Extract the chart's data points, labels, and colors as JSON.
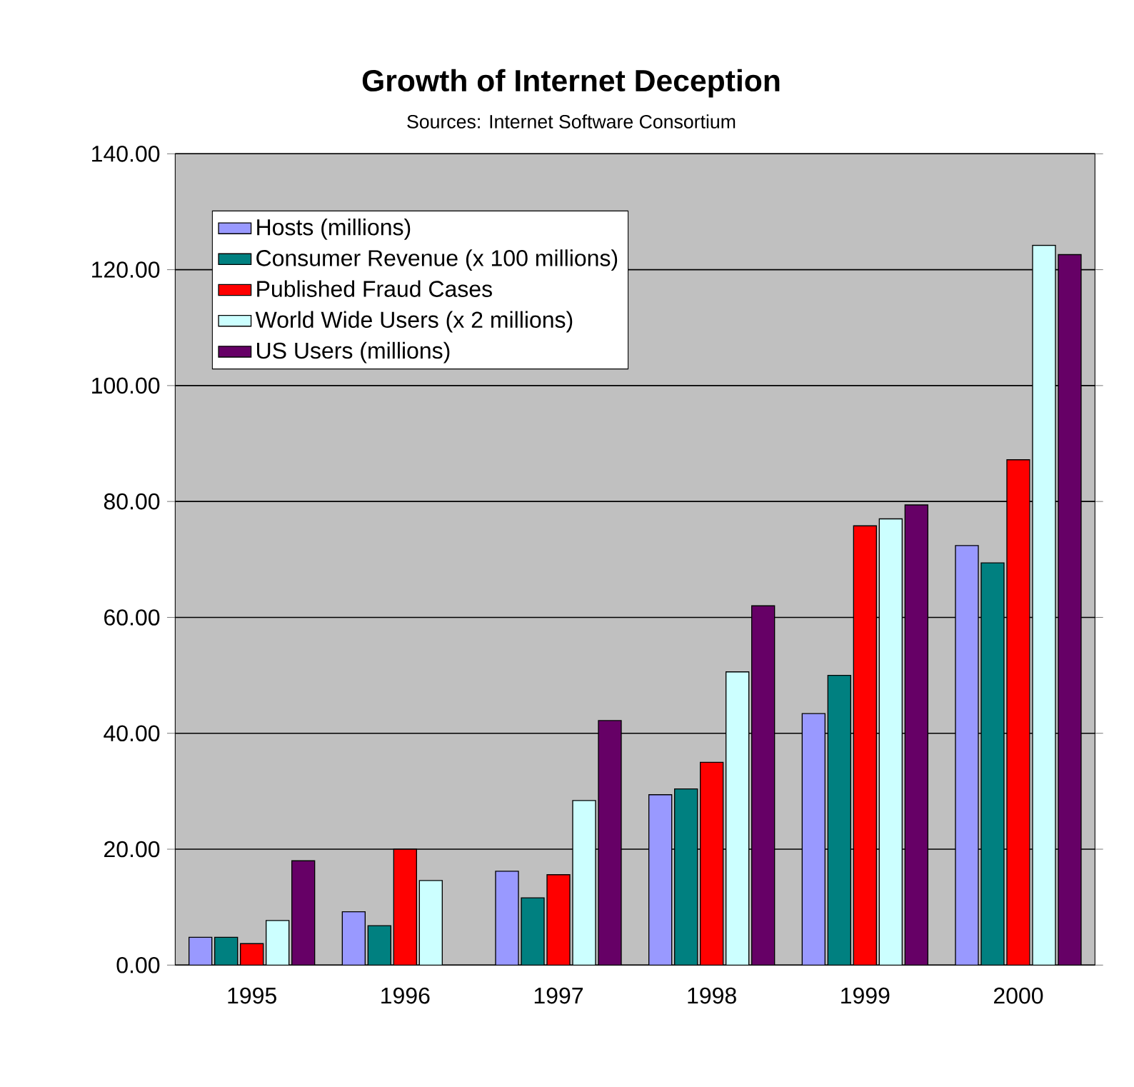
{
  "chart_data": {
    "type": "bar",
    "title": "Growth of Internet Deception",
    "subtitle": "Sources: Internet Software Consortium",
    "categories": [
      "1995",
      "1996",
      "1997",
      "1998",
      "1999",
      "2000"
    ],
    "series": [
      {
        "name": "Hosts (millions)",
        "color": "#9999ff",
        "values": [
          4.8,
          9.2,
          16.2,
          29.4,
          43.4,
          72.4
        ]
      },
      {
        "name": "Consumer Revenue (x 100 millions)",
        "color": "#008080",
        "values": [
          4.8,
          6.8,
          11.6,
          30.4,
          50,
          69.4
        ]
      },
      {
        "name": "Published Fraud Cases",
        "color": "#ff0000",
        "values": [
          3.7,
          20,
          15.6,
          35,
          75.8,
          87.2
        ]
      },
      {
        "name": "World Wide Users (x 2 millions)",
        "color": "#ccffff",
        "values": [
          7.7,
          14.6,
          28.4,
          50.6,
          77,
          124.2
        ]
      },
      {
        "name": "US Users (millions)",
        "color": "#660066",
        "values": [
          18,
          null,
          42.2,
          62,
          79.4,
          122.6
        ]
      }
    ],
    "ylim": [
      0,
      140
    ],
    "yticks": [
      {
        "value": 0,
        "label": "0.00"
      },
      {
        "value": 20,
        "label": "20.00"
      },
      {
        "value": 40,
        "label": "40.00"
      },
      {
        "value": 60,
        "label": "60.00"
      },
      {
        "value": 80,
        "label": "80.00"
      },
      {
        "value": 100,
        "label": "100.00"
      },
      {
        "value": 120,
        "label": "120.00"
      },
      {
        "value": 140,
        "label": "140.00"
      }
    ],
    "grid": "y",
    "legend": "top left"
  }
}
